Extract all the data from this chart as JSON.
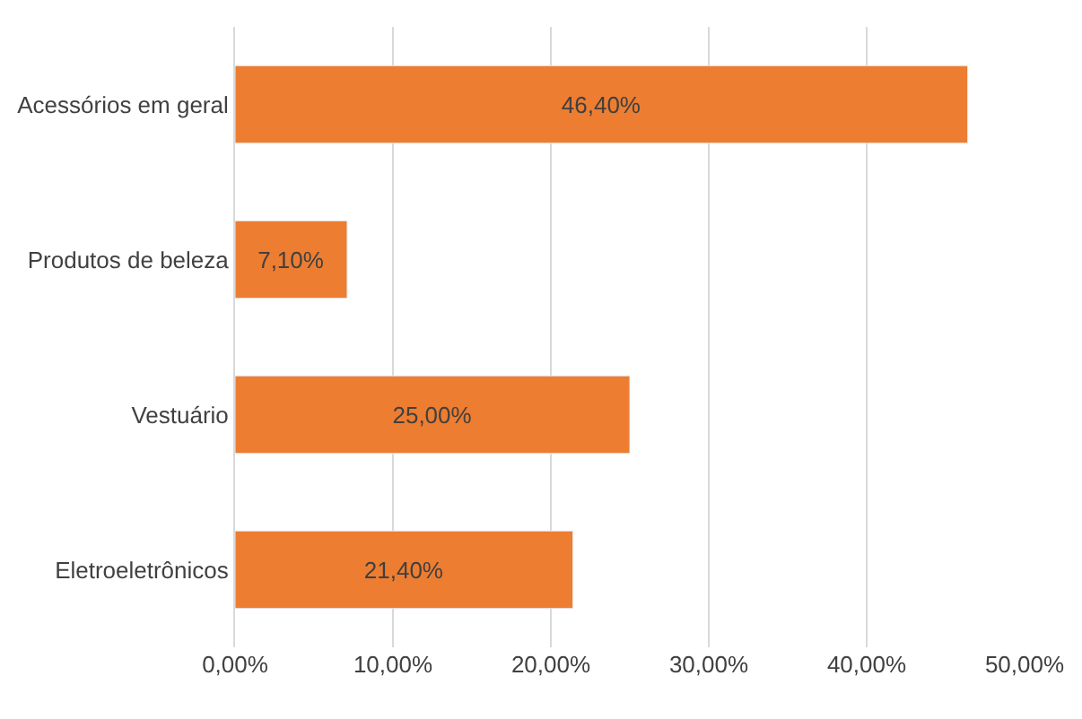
{
  "chart_data": {
    "type": "bar",
    "orientation": "horizontal",
    "categories": [
      "Acessórios em geral",
      "Produtos de beleza",
      "Vestuário",
      "Eletroeletrônicos"
    ],
    "values": [
      46.4,
      7.1,
      25.0,
      21.4
    ],
    "value_labels": [
      "46,40%",
      "7,10%",
      "25,00%",
      "21,40%"
    ],
    "color": "#ed7d31",
    "xlim": [
      0,
      50
    ],
    "xticks": [
      {
        "value": 0,
        "label": "0,00%"
      },
      {
        "value": 10,
        "label": "10,00%"
      },
      {
        "value": 20,
        "label": "20,00%"
      },
      {
        "value": 30,
        "label": "30,00%"
      },
      {
        "value": 40,
        "label": "40,00%"
      },
      {
        "value": 50,
        "label": "50,00%"
      }
    ],
    "grid": "x"
  }
}
